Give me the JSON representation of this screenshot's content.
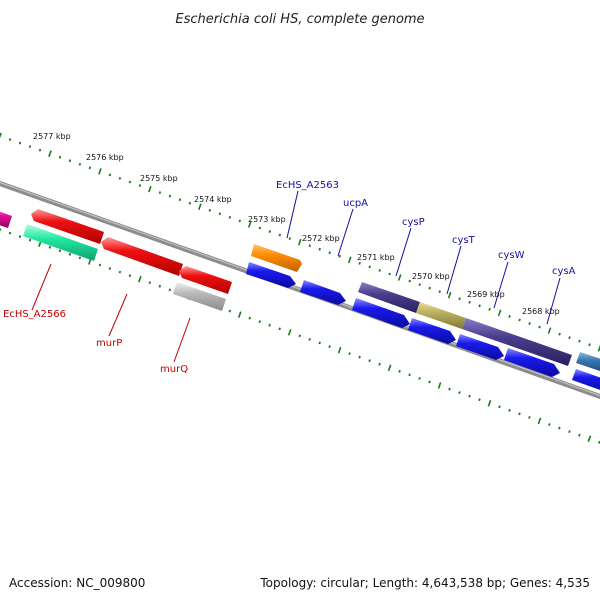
{
  "title": "Escherichia coli HS, complete genome",
  "footer": {
    "accession": "Accession: NC_009800",
    "summary": "Topology: circular; Length: 4,643,538 bp; Genes: 4,535"
  },
  "colors": {
    "backbone": "#8c8c8c",
    "tick": "#1a7a1a",
    "label_above": "#1010a0",
    "label_below": "#c00000"
  },
  "scale_labels": [
    "2577 kbp",
    "2576 kbp",
    "2575 kbp",
    "2574 kbp",
    "2573 kbp",
    "2572 kbp",
    "2571 kbp",
    "2570 kbp",
    "2569 kbp",
    "2568 kbp"
  ],
  "genes_above": [
    {
      "name": "EcHS_A2563",
      "color": "#ff8c00"
    },
    {
      "name": "ucpA",
      "color": "#1a1aee"
    },
    {
      "name": "cysP",
      "color": "#1a1aee"
    },
    {
      "name": "cysT",
      "color": "#4a3c8c"
    },
    {
      "name": "cysW",
      "color": "#1a1aee"
    },
    {
      "name": "cysA",
      "color": "#1a1aee"
    }
  ],
  "genes_below": [
    {
      "name": "EcHS_A2566",
      "color": "#20e8a0"
    },
    {
      "name": "murP",
      "color": "#ee1111"
    },
    {
      "name": "murQ",
      "color": "#aaaaaa"
    }
  ]
}
